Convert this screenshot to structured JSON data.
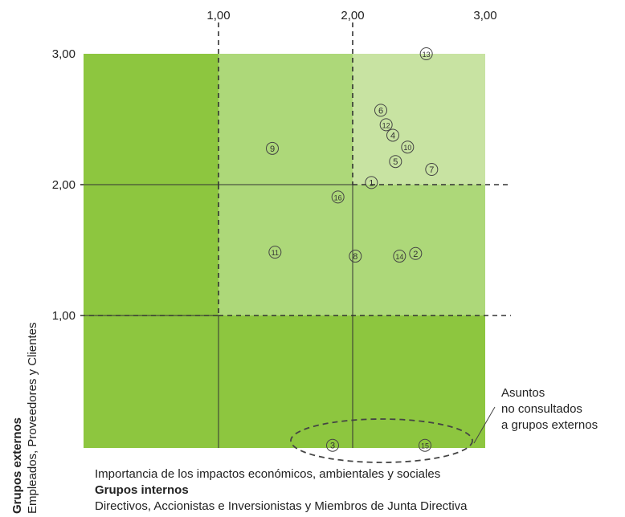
{
  "chart_data": {
    "type": "scatter",
    "xlabel": "Importancia de los impactos económicos, ambientales y sociales",
    "x_group_title": "Grupos internos",
    "x_group_subtitle": "Directivos, Accionistas e Inversionistas y Miembros de Junta Directiva",
    "y_group_title": "Grupos externos",
    "y_group_subtitle": "Empleados, Proveedores y Clientes",
    "xlim": [
      0,
      3
    ],
    "ylim": [
      0,
      3
    ],
    "x_ticks": [
      {
        "value": 1,
        "label": "1,00"
      },
      {
        "value": 2,
        "label": "2,00"
      },
      {
        "value": 3,
        "label": "3,00"
      }
    ],
    "y_ticks": [
      {
        "value": 1,
        "label": "1,00"
      },
      {
        "value": 2,
        "label": "2,00"
      },
      {
        "value": 3,
        "label": "3,00"
      }
    ],
    "points": [
      {
        "label": "1",
        "x": 2.15,
        "y": 2.02
      },
      {
        "label": "2",
        "x": 2.48,
        "y": 1.48
      },
      {
        "label": "3",
        "x": 1.86,
        "y": 0.02
      },
      {
        "label": "4",
        "x": 2.31,
        "y": 2.38
      },
      {
        "label": "5",
        "x": 2.33,
        "y": 2.18
      },
      {
        "label": "6",
        "x": 2.22,
        "y": 2.57
      },
      {
        "label": "7",
        "x": 2.6,
        "y": 2.12
      },
      {
        "label": "8",
        "x": 2.03,
        "y": 1.46
      },
      {
        "label": "9",
        "x": 1.41,
        "y": 2.28
      },
      {
        "label": "10",
        "x": 2.42,
        "y": 2.29
      },
      {
        "label": "11",
        "x": 1.43,
        "y": 1.49
      },
      {
        "label": "12",
        "x": 2.26,
        "y": 2.46
      },
      {
        "label": "13",
        "x": 2.56,
        "y": 3.0
      },
      {
        "label": "14",
        "x": 2.36,
        "y": 1.46
      },
      {
        "label": "15",
        "x": 2.55,
        "y": 0.02
      },
      {
        "label": "16",
        "x": 1.9,
        "y": 1.91
      }
    ],
    "zone_colors": {
      "dark": "#8dc63f",
      "medium": "#add879",
      "light": "#c8e3a2"
    },
    "annotation": {
      "lines": [
        "Asuntos",
        "no consultados",
        "a grupos externos"
      ]
    }
  }
}
